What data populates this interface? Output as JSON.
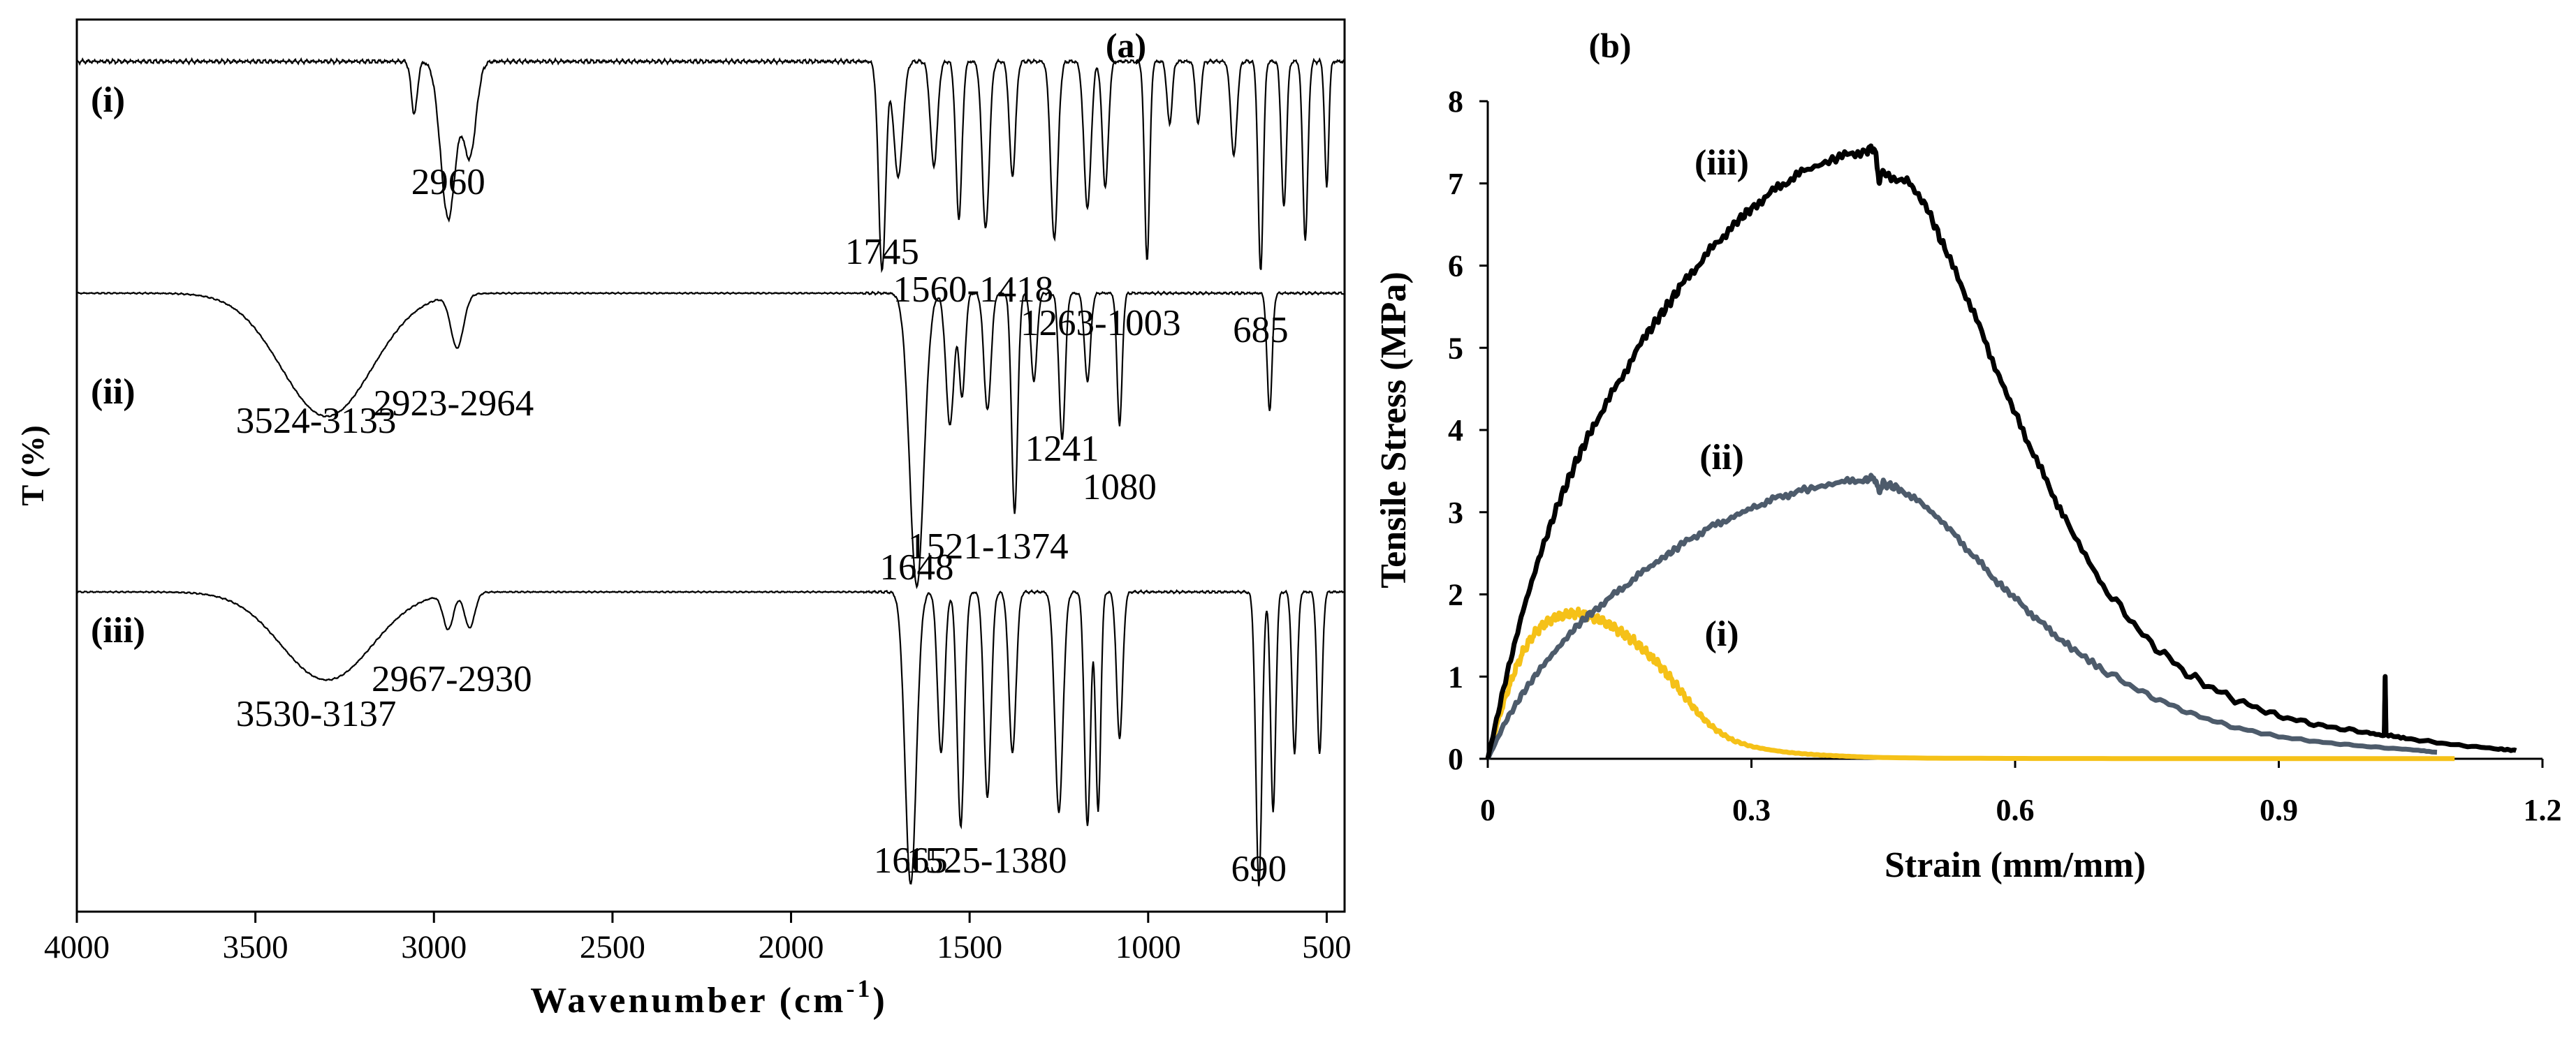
{
  "chart_data": [
    {
      "type": "line",
      "panel_label": "(a)",
      "title": "",
      "xlabel": "Wavenumber (cm",
      "xlabel_sup": "-1",
      "xlabel_end": ")",
      "ylabel": "T (%)",
      "xlim": [
        4000,
        450
      ],
      "xticks": [
        4000,
        3500,
        3000,
        2500,
        2000,
        1500,
        1000,
        500
      ],
      "series": [
        {
          "name": "(i)",
          "baseline_top": true,
          "bands": [
            {
              "center": 2960,
              "width": 30,
              "depth": 0.75
            },
            {
              "center": 2900,
              "width": 25,
              "depth": 0.45
            },
            {
              "center": 3055,
              "width": 12,
              "depth": 0.25
            },
            {
              "center": 1745,
              "width": 14,
              "depth": 1.0
            },
            {
              "center": 1700,
              "width": 18,
              "depth": 0.55
            },
            {
              "center": 1600,
              "width": 14,
              "depth": 0.5
            },
            {
              "center": 1530,
              "width": 12,
              "depth": 0.75
            },
            {
              "center": 1455,
              "width": 14,
              "depth": 0.8
            },
            {
              "center": 1380,
              "width": 12,
              "depth": 0.55
            },
            {
              "center": 1263,
              "width": 14,
              "depth": 0.85
            },
            {
              "center": 1170,
              "width": 14,
              "depth": 0.7
            },
            {
              "center": 1120,
              "width": 12,
              "depth": 0.6
            },
            {
              "center": 1003,
              "width": 10,
              "depth": 0.95
            },
            {
              "center": 940,
              "width": 10,
              "depth": 0.3
            },
            {
              "center": 860,
              "width": 10,
              "depth": 0.3
            },
            {
              "center": 760,
              "width": 12,
              "depth": 0.45
            },
            {
              "center": 685,
              "width": 10,
              "depth": 1.0
            },
            {
              "center": 620,
              "width": 10,
              "depth": 0.7
            },
            {
              "center": 560,
              "width": 10,
              "depth": 0.85
            },
            {
              "center": 500,
              "width": 8,
              "depth": 0.6
            }
          ],
          "annotations": [
            {
              "text": "2960",
              "at": 2960
            },
            {
              "text": "1745",
              "at": 1745
            },
            {
              "text": "1560-1418",
              "at": 1490
            },
            {
              "text": "1263-1003",
              "at": 1133
            },
            {
              "text": "685",
              "at": 685
            }
          ]
        },
        {
          "name": "(ii)",
          "bands": [
            {
              "center": 3300,
              "width": 180,
              "depth": 0.42
            },
            {
              "center": 2935,
              "width": 25,
              "depth": 0.18
            },
            {
              "center": 1648,
              "width": 28,
              "depth": 1.0
            },
            {
              "center": 1555,
              "width": 16,
              "depth": 0.45
            },
            {
              "center": 1521,
              "width": 12,
              "depth": 0.35
            },
            {
              "center": 1450,
              "width": 14,
              "depth": 0.4
            },
            {
              "center": 1374,
              "width": 12,
              "depth": 0.75
            },
            {
              "center": 1320,
              "width": 12,
              "depth": 0.3
            },
            {
              "center": 1241,
              "width": 12,
              "depth": 0.5
            },
            {
              "center": 1170,
              "width": 12,
              "depth": 0.3
            },
            {
              "center": 1080,
              "width": 10,
              "depth": 0.45
            },
            {
              "center": 660,
              "width": 10,
              "depth": 0.4
            }
          ],
          "annotations": [
            {
              "text": "3524-3133",
              "at": 3330
            },
            {
              "text": "2923-2964",
              "at": 2945
            },
            {
              "text": "1648",
              "at": 1648
            },
            {
              "text": "1521-1374",
              "at": 1448
            },
            {
              "text": "1241",
              "at": 1241
            },
            {
              "text": "1080",
              "at": 1080
            }
          ]
        },
        {
          "name": "(iii)",
          "bands": [
            {
              "center": 3300,
              "width": 180,
              "depth": 0.3
            },
            {
              "center": 2960,
              "width": 20,
              "depth": 0.12
            },
            {
              "center": 2900,
              "width": 20,
              "depth": 0.12
            },
            {
              "center": 1665,
              "width": 22,
              "depth": 1.0
            },
            {
              "center": 1580,
              "width": 14,
              "depth": 0.55
            },
            {
              "center": 1525,
              "width": 14,
              "depth": 0.8
            },
            {
              "center": 1450,
              "width": 14,
              "depth": 0.7
            },
            {
              "center": 1380,
              "width": 14,
              "depth": 0.55
            },
            {
              "center": 1250,
              "width": 16,
              "depth": 0.75
            },
            {
              "center": 1170,
              "width": 12,
              "depth": 0.8
            },
            {
              "center": 1140,
              "width": 10,
              "depth": 0.75
            },
            {
              "center": 1080,
              "width": 12,
              "depth": 0.5
            },
            {
              "center": 690,
              "width": 12,
              "depth": 1.0
            },
            {
              "center": 650,
              "width": 10,
              "depth": 0.75
            },
            {
              "center": 590,
              "width": 10,
              "depth": 0.55
            },
            {
              "center": 520,
              "width": 10,
              "depth": 0.55
            }
          ],
          "annotations": [
            {
              "text": "3530-3137",
              "at": 3330
            },
            {
              "text": "2967-2930",
              "at": 2950
            },
            {
              "text": "1665",
              "at": 1665
            },
            {
              "text": "1525-1380",
              "at": 1452
            },
            {
              "text": "690",
              "at": 690
            }
          ]
        }
      ]
    },
    {
      "type": "line",
      "panel_label": "(b)",
      "title": "",
      "xlabel": "Strain (mm/mm)",
      "ylabel": "Tensile Stress (MPa)",
      "xlim": [
        0,
        1.2
      ],
      "ylim": [
        0,
        8
      ],
      "xticks": [
        0,
        0.3,
        0.6,
        0.9,
        1.2
      ],
      "xtick_labels": [
        "0",
        "0.3",
        "0.6",
        "0.9",
        "1.2"
      ],
      "yticks": [
        0,
        1,
        2,
        3,
        4,
        5,
        6,
        7,
        8
      ],
      "series": [
        {
          "name": "(i)",
          "color": "#f5c118",
          "x": [
            0,
            0.01,
            0.02,
            0.03,
            0.04,
            0.05,
            0.06,
            0.07,
            0.08,
            0.09,
            0.1,
            0.11,
            0.12,
            0.13,
            0.14,
            0.15,
            0.16,
            0.17,
            0.18,
            0.19,
            0.2,
            0.21,
            0.22,
            0.23,
            0.24,
            0.25,
            0.26,
            0.27,
            0.28,
            0.3,
            0.32,
            0.34,
            0.36,
            0.38,
            0.4,
            0.42,
            0.45,
            0.5,
            0.6,
            0.7,
            0.8,
            0.9,
            1.0,
            1.1
          ],
          "values": [
            0,
            0.4,
            0.75,
            1.05,
            1.3,
            1.48,
            1.6,
            1.68,
            1.73,
            1.76,
            1.77,
            1.75,
            1.72,
            1.68,
            1.62,
            1.55,
            1.48,
            1.4,
            1.3,
            1.2,
            1.08,
            0.95,
            0.82,
            0.68,
            0.55,
            0.44,
            0.35,
            0.28,
            0.22,
            0.15,
            0.11,
            0.08,
            0.06,
            0.045,
            0.035,
            0.025,
            0.015,
            0.008,
            0.004,
            0.003,
            0.002,
            0.002,
            0.002,
            0.002
          ]
        },
        {
          "name": "(ii)",
          "color": "#4d5b6b",
          "x": [
            0,
            0.02,
            0.04,
            0.06,
            0.08,
            0.1,
            0.12,
            0.15,
            0.18,
            0.2,
            0.22,
            0.25,
            0.28,
            0.3,
            0.33,
            0.36,
            0.4,
            0.43,
            0.44,
            0.445,
            0.45,
            0.47,
            0.5,
            0.52,
            0.55,
            0.58,
            0.6,
            0.63,
            0.66,
            0.7,
            0.75,
            0.8,
            0.85,
            0.9,
            0.95,
            1.0,
            1.05,
            1.08
          ],
          "values": [
            0,
            0.45,
            0.8,
            1.1,
            1.35,
            1.6,
            1.8,
            2.05,
            2.3,
            2.45,
            2.6,
            2.8,
            2.95,
            3.05,
            3.18,
            3.27,
            3.36,
            3.4,
            3.42,
            3.25,
            3.35,
            3.28,
            3.05,
            2.85,
            2.5,
            2.15,
            1.95,
            1.65,
            1.38,
            1.08,
            0.78,
            0.55,
            0.38,
            0.27,
            0.2,
            0.15,
            0.11,
            0.08
          ]
        },
        {
          "name": "(iii)",
          "color": "#000000",
          "x": [
            0,
            0.02,
            0.04,
            0.06,
            0.08,
            0.1,
            0.12,
            0.15,
            0.18,
            0.2,
            0.22,
            0.25,
            0.28,
            0.3,
            0.33,
            0.36,
            0.4,
            0.43,
            0.44,
            0.445,
            0.45,
            0.48,
            0.5,
            0.52,
            0.55,
            0.58,
            0.6,
            0.63,
            0.66,
            0.7,
            0.75,
            0.8,
            0.85,
            0.9,
            0.95,
            1.0,
            1.02,
            1.021,
            1.022,
            1.05,
            1.1,
            1.15,
            1.17
          ],
          "values": [
            0,
            0.95,
            1.8,
            2.5,
            3.1,
            3.6,
            4.05,
            4.6,
            5.15,
            5.45,
            5.75,
            6.15,
            6.5,
            6.7,
            6.95,
            7.15,
            7.32,
            7.4,
            7.43,
            7.05,
            7.12,
            7.0,
            6.7,
            6.2,
            5.5,
            4.7,
            4.2,
            3.5,
            2.85,
            2.1,
            1.45,
            1.0,
            0.72,
            0.52,
            0.4,
            0.32,
            0.28,
            0.95,
            0.3,
            0.24,
            0.17,
            0.12,
            0.1
          ]
        }
      ]
    }
  ]
}
